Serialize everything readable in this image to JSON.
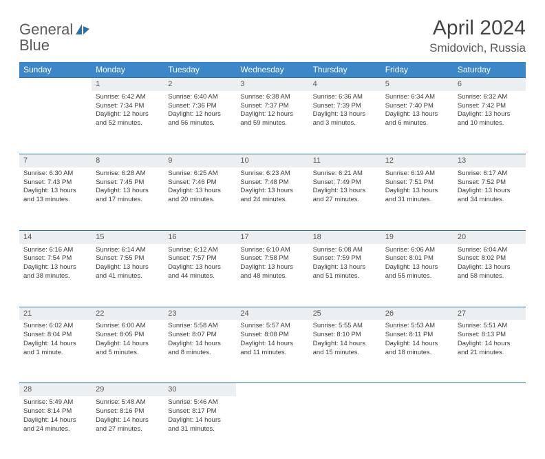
{
  "brand": {
    "part1": "General",
    "part2": "Blue",
    "accent_color": "#2f6fa8"
  },
  "title": "April 2024",
  "location": "Smidovich, Russia",
  "calendar": {
    "header_bg": "#3b87c8",
    "header_fg": "#ffffff",
    "daynum_bg": "#eceff1",
    "border_color": "#2f6fa8",
    "text_color": "#3a3a3a",
    "font_size_cell": 9.5,
    "font_size_header": 12,
    "days_of_week": [
      "Sunday",
      "Monday",
      "Tuesday",
      "Wednesday",
      "Thursday",
      "Friday",
      "Saturday"
    ],
    "weeks": [
      [
        null,
        {
          "n": "1",
          "sr": "6:42 AM",
          "ss": "7:34 PM",
          "dl": "12 hours and 52 minutes."
        },
        {
          "n": "2",
          "sr": "6:40 AM",
          "ss": "7:36 PM",
          "dl": "12 hours and 56 minutes."
        },
        {
          "n": "3",
          "sr": "6:38 AM",
          "ss": "7:37 PM",
          "dl": "12 hours and 59 minutes."
        },
        {
          "n": "4",
          "sr": "6:36 AM",
          "ss": "7:39 PM",
          "dl": "13 hours and 3 minutes."
        },
        {
          "n": "5",
          "sr": "6:34 AM",
          "ss": "7:40 PM",
          "dl": "13 hours and 6 minutes."
        },
        {
          "n": "6",
          "sr": "6:32 AM",
          "ss": "7:42 PM",
          "dl": "13 hours and 10 minutes."
        }
      ],
      [
        {
          "n": "7",
          "sr": "6:30 AM",
          "ss": "7:43 PM",
          "dl": "13 hours and 13 minutes."
        },
        {
          "n": "8",
          "sr": "6:28 AM",
          "ss": "7:45 PM",
          "dl": "13 hours and 17 minutes."
        },
        {
          "n": "9",
          "sr": "6:25 AM",
          "ss": "7:46 PM",
          "dl": "13 hours and 20 minutes."
        },
        {
          "n": "10",
          "sr": "6:23 AM",
          "ss": "7:48 PM",
          "dl": "13 hours and 24 minutes."
        },
        {
          "n": "11",
          "sr": "6:21 AM",
          "ss": "7:49 PM",
          "dl": "13 hours and 27 minutes."
        },
        {
          "n": "12",
          "sr": "6:19 AM",
          "ss": "7:51 PM",
          "dl": "13 hours and 31 minutes."
        },
        {
          "n": "13",
          "sr": "6:17 AM",
          "ss": "7:52 PM",
          "dl": "13 hours and 34 minutes."
        }
      ],
      [
        {
          "n": "14",
          "sr": "6:16 AM",
          "ss": "7:54 PM",
          "dl": "13 hours and 38 minutes."
        },
        {
          "n": "15",
          "sr": "6:14 AM",
          "ss": "7:55 PM",
          "dl": "13 hours and 41 minutes."
        },
        {
          "n": "16",
          "sr": "6:12 AM",
          "ss": "7:57 PM",
          "dl": "13 hours and 44 minutes."
        },
        {
          "n": "17",
          "sr": "6:10 AM",
          "ss": "7:58 PM",
          "dl": "13 hours and 48 minutes."
        },
        {
          "n": "18",
          "sr": "6:08 AM",
          "ss": "7:59 PM",
          "dl": "13 hours and 51 minutes."
        },
        {
          "n": "19",
          "sr": "6:06 AM",
          "ss": "8:01 PM",
          "dl": "13 hours and 55 minutes."
        },
        {
          "n": "20",
          "sr": "6:04 AM",
          "ss": "8:02 PM",
          "dl": "13 hours and 58 minutes."
        }
      ],
      [
        {
          "n": "21",
          "sr": "6:02 AM",
          "ss": "8:04 PM",
          "dl": "14 hours and 1 minute."
        },
        {
          "n": "22",
          "sr": "6:00 AM",
          "ss": "8:05 PM",
          "dl": "14 hours and 5 minutes."
        },
        {
          "n": "23",
          "sr": "5:58 AM",
          "ss": "8:07 PM",
          "dl": "14 hours and 8 minutes."
        },
        {
          "n": "24",
          "sr": "5:57 AM",
          "ss": "8:08 PM",
          "dl": "14 hours and 11 minutes."
        },
        {
          "n": "25",
          "sr": "5:55 AM",
          "ss": "8:10 PM",
          "dl": "14 hours and 15 minutes."
        },
        {
          "n": "26",
          "sr": "5:53 AM",
          "ss": "8:11 PM",
          "dl": "14 hours and 18 minutes."
        },
        {
          "n": "27",
          "sr": "5:51 AM",
          "ss": "8:13 PM",
          "dl": "14 hours and 21 minutes."
        }
      ],
      [
        {
          "n": "28",
          "sr": "5:49 AM",
          "ss": "8:14 PM",
          "dl": "14 hours and 24 minutes."
        },
        {
          "n": "29",
          "sr": "5:48 AM",
          "ss": "8:16 PM",
          "dl": "14 hours and 27 minutes."
        },
        {
          "n": "30",
          "sr": "5:46 AM",
          "ss": "8:17 PM",
          "dl": "14 hours and 31 minutes."
        },
        null,
        null,
        null,
        null
      ]
    ],
    "labels": {
      "sunrise_prefix": "Sunrise: ",
      "sunset_prefix": "Sunset: ",
      "daylight_prefix": "Daylight: "
    }
  }
}
